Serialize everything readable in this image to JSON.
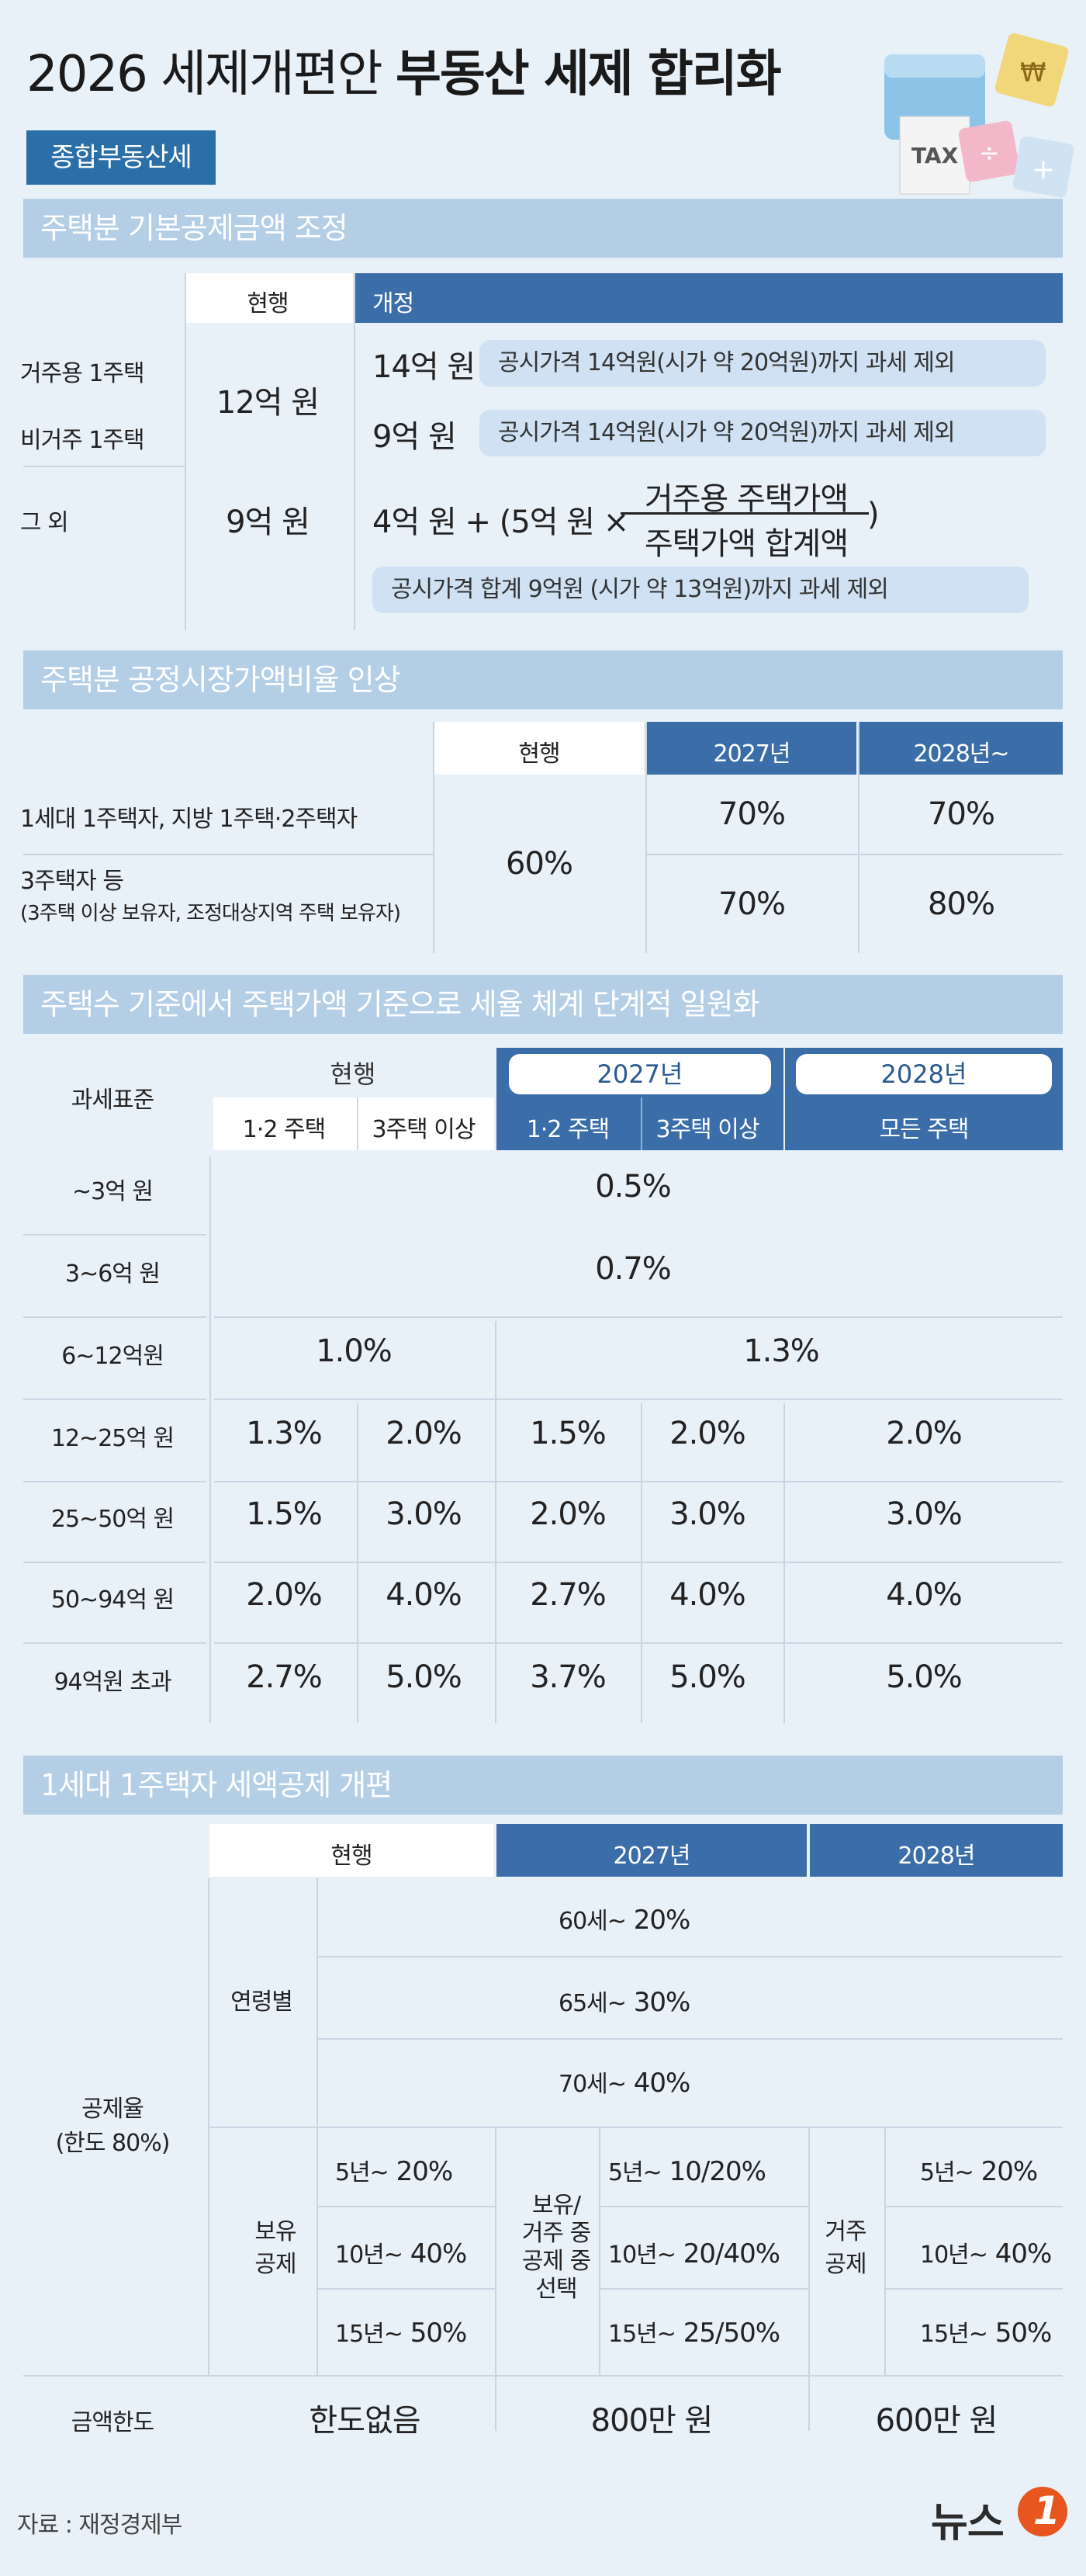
{
  "header": {
    "title_light": "2026 세제개편안",
    "title_bold": "부동산 세제 합리화",
    "tag": "종합부동산세",
    "icon_tax": "TAX"
  },
  "s1": {
    "title": "주택분 기본공제금액 조정",
    "col_current": "현행",
    "col_revised": "개정",
    "row1": "거주용 1주택",
    "row2": "비거주 1주택",
    "row3": "그 외",
    "cur12": "12억 원",
    "cur9": "9억 원",
    "rev1": "14억 원",
    "rev1_note": "공시가격 14억원(시가 약 20억원)까지 과세 제외",
    "rev2": "9억 원",
    "rev2_note": "공시가격 14억원(시가 약 20억원)까지 과세 제외",
    "formula_a": "4억 원 + (5억 원 ×",
    "formula_num": "거주용 주택가액",
    "formula_den": "주택가액 합계액",
    "formula_close": ")",
    "rev3_note": "공시가격 합계 9억원 (시가 약 13억원)까지 과세 제외"
  },
  "s2": {
    "title": "주택분 공정시장가액비율 인상",
    "col_current": "현행",
    "col_2027": "2027년",
    "col_2028": "2028년~",
    "row1": "1세대 1주택자, 지방 1주택·2주택자",
    "row2": "3주택자 등",
    "row2_sub": "(3주택 이상 보유자, 조정대상지역 주택 보유자)",
    "current": "60%",
    "r1_2027": "70%",
    "r1_2028": "70%",
    "r2_2027": "70%",
    "r2_2028": "80%"
  },
  "s3": {
    "title": "주택수 기준에서 주택가액 기준으로 세율 체계 단계적 일원화",
    "col_base": "과세표준",
    "col_current": "현행",
    "col_2027": "2027년",
    "col_2028": "2028년",
    "sub_12": "1·2 주택",
    "sub_3": "3주택 이상",
    "sub_all": "모든 주택",
    "rows": [
      {
        "label": "~3억 원",
        "merged": "0.5%"
      },
      {
        "label": "3~6억 원",
        "merged": "0.7%"
      },
      {
        "label": "6~12억원",
        "cur": "1.0%",
        "new": "1.3%"
      },
      {
        "label": "12~25억 원",
        "v": [
          "1.3%",
          "2.0%",
          "1.5%",
          "2.0%",
          "2.0%"
        ]
      },
      {
        "label": "25~50억 원",
        "v": [
          "1.5%",
          "3.0%",
          "2.0%",
          "3.0%",
          "3.0%"
        ]
      },
      {
        "label": "50~94억 원",
        "v": [
          "2.0%",
          "4.0%",
          "2.7%",
          "4.0%",
          "4.0%"
        ]
      },
      {
        "label": "94억원 초과",
        "v": [
          "2.7%",
          "5.0%",
          "3.7%",
          "5.0%",
          "5.0%"
        ]
      }
    ]
  },
  "s4": {
    "title": "1세대 1주택자 세액공제 개편",
    "col_current": "현행",
    "col_2027": "2027년",
    "col_2028": "2028년",
    "rate_label": "공제율",
    "rate_sub": "(한도 80%)",
    "age_label": "연령별",
    "age_rows": [
      {
        "a": "60세~",
        "v": "20%"
      },
      {
        "a": "65세~",
        "v": "30%"
      },
      {
        "a": "70세~",
        "v": "40%"
      }
    ],
    "hold_label1": "보유",
    "hold_label2": "공제",
    "hold_rows": [
      {
        "a": "5년~",
        "v": "20%"
      },
      {
        "a": "10년~",
        "v": "40%"
      },
      {
        "a": "15년~",
        "v": "50%"
      }
    ],
    "sel_label": [
      "보유/",
      "거주 중",
      "공제 중",
      "선택"
    ],
    "sel_rows": [
      {
        "a": "5년~",
        "v": "10/20%"
      },
      {
        "a": "10년~",
        "v": "20/40%"
      },
      {
        "a": "15년~",
        "v": "25/50%"
      }
    ],
    "res_label1": "거주",
    "res_label2": "공제",
    "res_rows": [
      {
        "a": "5년~",
        "v": "20%"
      },
      {
        "a": "10년~",
        "v": "40%"
      },
      {
        "a": "15년~",
        "v": "50%"
      }
    ],
    "limit_label": "금액한도",
    "limit_cur": "한도없음",
    "limit_2027": "800만 원",
    "limit_2028": "600만 원"
  },
  "footer": {
    "source": "자료 : 재정경제부",
    "brand": "뉴스",
    "brand_num": "1"
  },
  "colors": {
    "accent": "#3b6ea8",
    "section": "#b4cee6",
    "bg": "#e8f0f8"
  }
}
